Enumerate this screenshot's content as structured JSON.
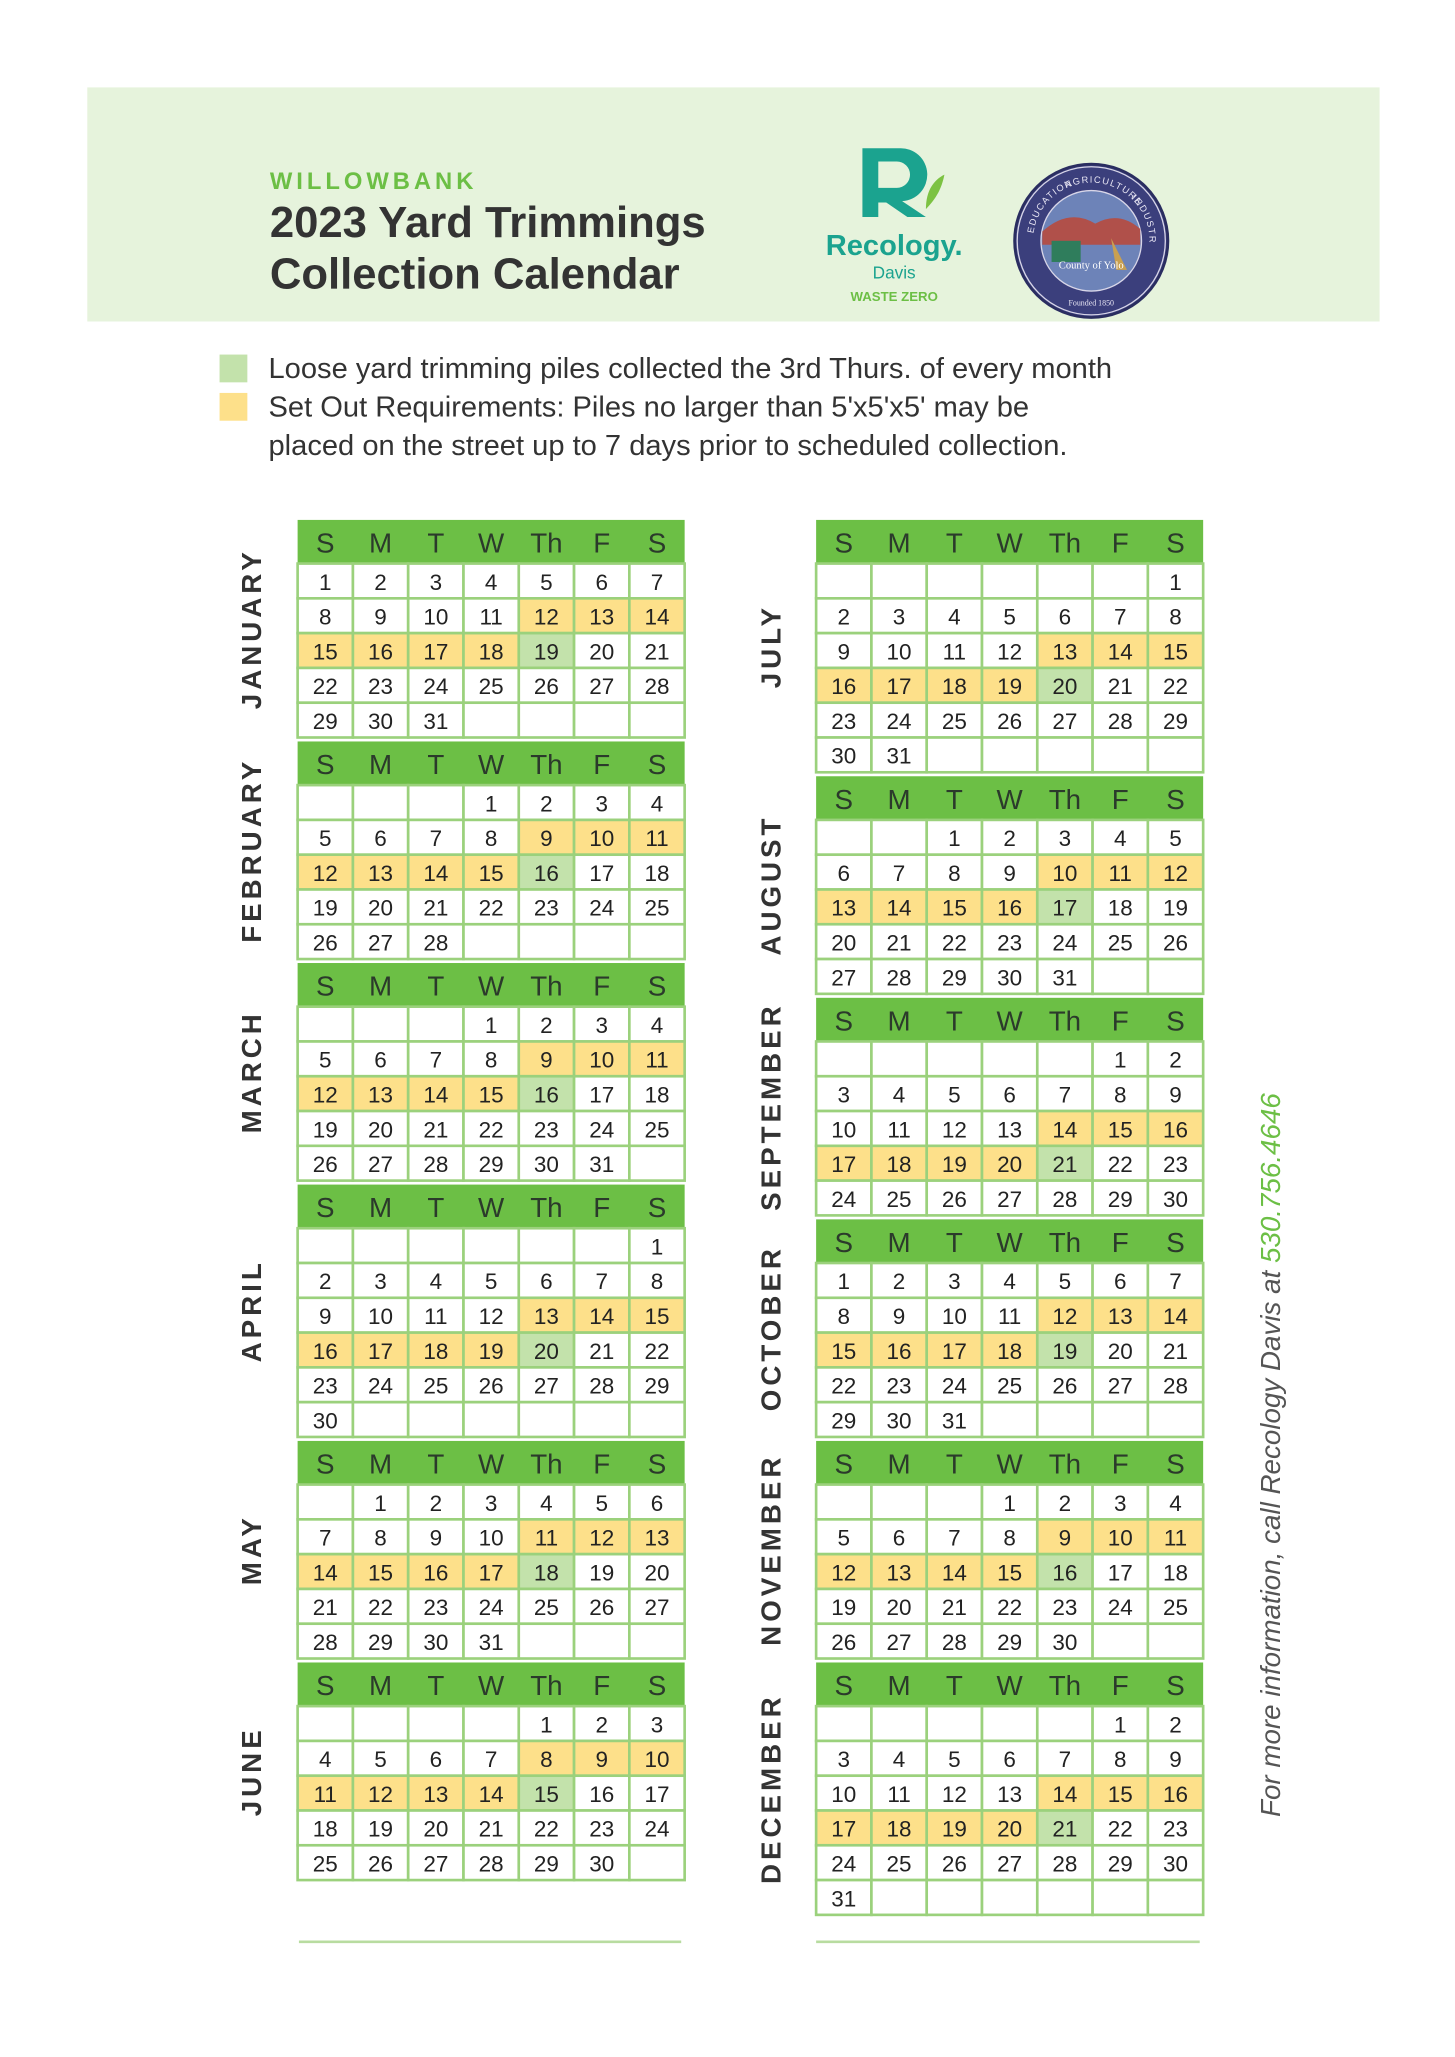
{
  "header": {
    "area": "WILLOWBANK",
    "title_lines": [
      "2023 Yard Trimmings",
      "Collection Calendar"
    ],
    "logo": {
      "brand": "Recology.",
      "city": "Davis",
      "tagline": "WASTE ZERO"
    },
    "seal": {
      "ring": [
        "EDUCATION",
        "AGRICULTURE",
        "INDUSTRY"
      ],
      "name": "County of Yolo",
      "founded": "Founded 1850"
    }
  },
  "legend": [
    {
      "color": "#c3e2ab",
      "lines": [
        "Loose yard trimming piles collected the 3rd Thurs. of every month"
      ]
    },
    {
      "color": "#fde08a",
      "lines": [
        "Set Out Requirements: Piles no larger than 5'x5'x5' may be",
        "placed on the street up to 7 days prior to scheduled collection."
      ]
    }
  ],
  "weekdays": [
    "S",
    "M",
    "T",
    "W",
    "Th",
    "F",
    "S"
  ],
  "months": [
    {
      "name": "JANUARY",
      "weeks": [
        [
          1,
          2,
          3,
          4,
          5,
          6,
          7
        ],
        [
          8,
          9,
          10,
          11,
          12,
          13,
          14
        ],
        [
          15,
          16,
          17,
          18,
          19,
          20,
          21
        ],
        [
          22,
          23,
          24,
          25,
          26,
          27,
          28
        ],
        [
          29,
          30,
          31,
          null,
          null,
          null,
          null
        ]
      ],
      "set_out_days": [
        12,
        13,
        14,
        15,
        16,
        17,
        18
      ],
      "collection_day": 19
    },
    {
      "name": "FEBRUARY",
      "weeks": [
        [
          null,
          null,
          null,
          1,
          2,
          3,
          4
        ],
        [
          5,
          6,
          7,
          8,
          9,
          10,
          11
        ],
        [
          12,
          13,
          14,
          15,
          16,
          17,
          18
        ],
        [
          19,
          20,
          21,
          22,
          23,
          24,
          25
        ],
        [
          26,
          27,
          28,
          null,
          null,
          null,
          null
        ]
      ],
      "set_out_days": [
        9,
        10,
        11,
        12,
        13,
        14,
        15
      ],
      "collection_day": 16
    },
    {
      "name": "MARCH",
      "weeks": [
        [
          null,
          null,
          null,
          1,
          2,
          3,
          4
        ],
        [
          5,
          6,
          7,
          8,
          9,
          10,
          11
        ],
        [
          12,
          13,
          14,
          15,
          16,
          17,
          18
        ],
        [
          19,
          20,
          21,
          22,
          23,
          24,
          25
        ],
        [
          26,
          27,
          28,
          29,
          30,
          31,
          null
        ]
      ],
      "set_out_days": [
        9,
        10,
        11,
        12,
        13,
        14,
        15
      ],
      "collection_day": 16
    },
    {
      "name": "APRIL",
      "weeks": [
        [
          null,
          null,
          null,
          null,
          null,
          null,
          1
        ],
        [
          2,
          3,
          4,
          5,
          6,
          7,
          8
        ],
        [
          9,
          10,
          11,
          12,
          13,
          14,
          15
        ],
        [
          16,
          17,
          18,
          19,
          20,
          21,
          22
        ],
        [
          23,
          24,
          25,
          26,
          27,
          28,
          29
        ],
        [
          30,
          null,
          null,
          null,
          null,
          null,
          null
        ]
      ],
      "set_out_days": [
        13,
        14,
        15,
        16,
        17,
        18,
        19
      ],
      "collection_day": 20
    },
    {
      "name": "MAY",
      "weeks": [
        [
          null,
          1,
          2,
          3,
          4,
          5,
          6
        ],
        [
          7,
          8,
          9,
          10,
          11,
          12,
          13
        ],
        [
          14,
          15,
          16,
          17,
          18,
          19,
          20
        ],
        [
          21,
          22,
          23,
          24,
          25,
          26,
          27
        ],
        [
          28,
          29,
          30,
          31,
          null,
          null,
          null
        ]
      ],
      "set_out_days": [
        11,
        12,
        13,
        14,
        15,
        16,
        17
      ],
      "collection_day": 18
    },
    {
      "name": "JUNE",
      "weeks": [
        [
          null,
          null,
          null,
          null,
          1,
          2,
          3
        ],
        [
          4,
          5,
          6,
          7,
          8,
          9,
          10
        ],
        [
          11,
          12,
          13,
          14,
          15,
          16,
          17
        ],
        [
          18,
          19,
          20,
          21,
          22,
          23,
          24
        ],
        [
          25,
          26,
          27,
          28,
          29,
          30,
          null
        ]
      ],
      "set_out_days": [
        8,
        9,
        10,
        11,
        12,
        13,
        14
      ],
      "collection_day": 15
    },
    {
      "name": "JULY",
      "weeks": [
        [
          null,
          null,
          null,
          null,
          null,
          null,
          1
        ],
        [
          2,
          3,
          4,
          5,
          6,
          7,
          8
        ],
        [
          9,
          10,
          11,
          12,
          13,
          14,
          15
        ],
        [
          16,
          17,
          18,
          19,
          20,
          21,
          22
        ],
        [
          23,
          24,
          25,
          26,
          27,
          28,
          29
        ],
        [
          30,
          31,
          null,
          null,
          null,
          null,
          null
        ]
      ],
      "set_out_days": [
        13,
        14,
        15,
        16,
        17,
        18,
        19
      ],
      "collection_day": 20
    },
    {
      "name": "AUGUST",
      "weeks": [
        [
          null,
          null,
          1,
          2,
          3,
          4,
          5
        ],
        [
          6,
          7,
          8,
          9,
          10,
          11,
          12
        ],
        [
          13,
          14,
          15,
          16,
          17,
          18,
          19
        ],
        [
          20,
          21,
          22,
          23,
          24,
          25,
          26
        ],
        [
          27,
          28,
          29,
          30,
          31,
          null,
          null
        ]
      ],
      "set_out_days": [
        10,
        11,
        12,
        13,
        14,
        15,
        16
      ],
      "collection_day": 17
    },
    {
      "name": "SEPTEMBER",
      "weeks": [
        [
          null,
          null,
          null,
          null,
          null,
          1,
          2
        ],
        [
          3,
          4,
          5,
          6,
          7,
          8,
          9
        ],
        [
          10,
          11,
          12,
          13,
          14,
          15,
          16
        ],
        [
          17,
          18,
          19,
          20,
          21,
          22,
          23
        ],
        [
          24,
          25,
          26,
          27,
          28,
          29,
          30
        ]
      ],
      "set_out_days": [
        14,
        15,
        16,
        17,
        18,
        19,
        20
      ],
      "collection_day": 21
    },
    {
      "name": "OCTOBER",
      "weeks": [
        [
          1,
          2,
          3,
          4,
          5,
          6,
          7
        ],
        [
          8,
          9,
          10,
          11,
          12,
          13,
          14
        ],
        [
          15,
          16,
          17,
          18,
          19,
          20,
          21
        ],
        [
          22,
          23,
          24,
          25,
          26,
          27,
          28
        ],
        [
          29,
          30,
          31,
          null,
          null,
          null,
          null
        ]
      ],
      "set_out_days": [
        12,
        13,
        14,
        15,
        16,
        17,
        18
      ],
      "collection_day": 19
    },
    {
      "name": "NOVEMBER",
      "weeks": [
        [
          null,
          null,
          null,
          1,
          2,
          3,
          4
        ],
        [
          5,
          6,
          7,
          8,
          9,
          10,
          11
        ],
        [
          12,
          13,
          14,
          15,
          16,
          17,
          18
        ],
        [
          19,
          20,
          21,
          22,
          23,
          24,
          25
        ],
        [
          26,
          27,
          28,
          29,
          30,
          null,
          null
        ]
      ],
      "set_out_days": [
        9,
        10,
        11,
        12,
        13,
        14,
        15
      ],
      "collection_day": 16
    },
    {
      "name": "DECEMBER",
      "weeks": [
        [
          null,
          null,
          null,
          null,
          null,
          1,
          2
        ],
        [
          3,
          4,
          5,
          6,
          7,
          8,
          9
        ],
        [
          10,
          11,
          12,
          13,
          14,
          15,
          16
        ],
        [
          17,
          18,
          19,
          20,
          21,
          22,
          23
        ],
        [
          24,
          25,
          26,
          27,
          28,
          29,
          30
        ],
        [
          31,
          null,
          null,
          null,
          null,
          null,
          null
        ]
      ],
      "set_out_days": [
        14,
        15,
        16,
        17,
        18,
        19,
        20
      ],
      "collection_day": 21
    }
  ],
  "contact": {
    "text": "For more information, call Recology Davis at ",
    "phone": "530.756.4646"
  }
}
